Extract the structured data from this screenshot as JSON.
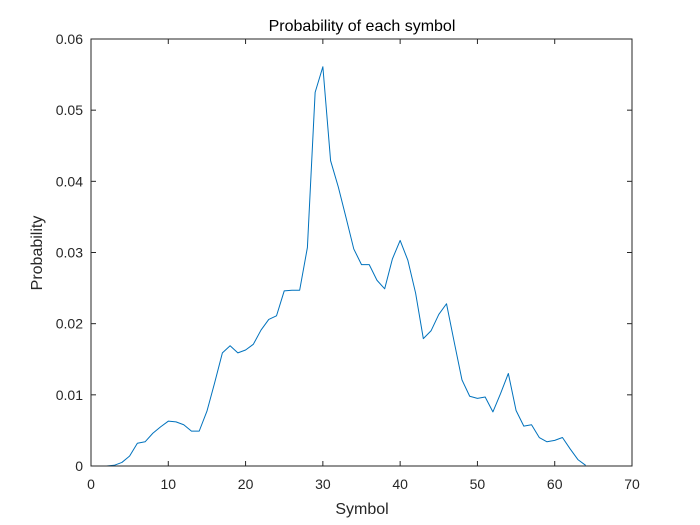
{
  "chart_data": {
    "type": "line",
    "title": "Probability of each symbol",
    "xlabel": "Symbol",
    "ylabel": "Probability",
    "xlim": [
      0,
      70
    ],
    "ylim": [
      0,
      0.06
    ],
    "xticks": [
      "0",
      "10",
      "20",
      "30",
      "40",
      "50",
      "60",
      "70"
    ],
    "yticks": [
      "0",
      "0.01",
      "0.02",
      "0.03",
      "0.04",
      "0.05",
      "0.06"
    ],
    "grid": false,
    "line_color": "#0072BD",
    "series": [
      {
        "x": [
          2,
          3,
          4,
          5,
          6,
          7,
          8,
          9,
          10,
          11,
          12,
          13,
          14,
          15,
          16,
          17,
          18,
          19,
          20,
          21,
          22,
          23,
          24,
          25,
          26,
          27,
          28,
          29,
          30,
          31,
          32,
          33,
          34,
          35,
          36,
          37,
          38,
          39,
          40,
          41,
          42,
          43,
          44,
          45,
          46,
          47,
          48,
          49,
          50,
          51,
          52,
          53,
          54,
          55,
          56,
          57,
          58,
          59,
          60,
          61,
          62,
          63,
          64
        ],
        "y": [
          0,
          0.0001,
          0.0005,
          0.0014,
          0.0032,
          0.0034,
          0.0046,
          0.0055,
          0.0063,
          0.0062,
          0.0058,
          0.0049,
          0.0049,
          0.0077,
          0.0117,
          0.0159,
          0.0169,
          0.0159,
          0.0163,
          0.0171,
          0.0191,
          0.0206,
          0.0211,
          0.0246,
          0.0247,
          0.0247,
          0.0307,
          0.0525,
          0.0561,
          0.0429,
          0.0392,
          0.0349,
          0.0305,
          0.0283,
          0.0283,
          0.0261,
          0.0249,
          0.0291,
          0.0317,
          0.0289,
          0.0243,
          0.0179,
          0.019,
          0.0213,
          0.0228,
          0.0174,
          0.0121,
          0.0098,
          0.0095,
          0.0097,
          0.0076,
          0.0102,
          0.013,
          0.0078,
          0.0056,
          0.0058,
          0.004,
          0.0034,
          0.0036,
          0.004,
          0.0024,
          0.0009,
          0.0001
        ]
      }
    ]
  }
}
